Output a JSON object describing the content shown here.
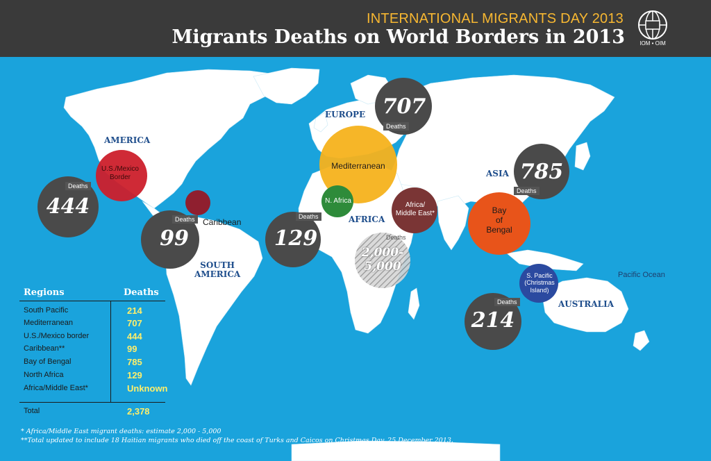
{
  "header": {
    "supertitle": "INTERNATIONAL MIGRANTS DAY 2013",
    "title": "Migrants Deaths on World Borders in 2013",
    "logo_text": "IOM • OIM"
  },
  "colors": {
    "ocean": "#1aa3dc",
    "land": "#ffffff",
    "header_bg": "#3a3a3a",
    "accent_yellow": "#f7b731",
    "us_mexico": "#cc1f2b",
    "caribbean": "#8f1f2f",
    "mediterranean": "#f5b21c",
    "north_africa": "#2e8b3a",
    "africa_middle_east": "#7a3535",
    "bay_of_bengal": "#e8541a",
    "south_pacific": "#2b4aa0",
    "bubble_dark": "#4a4a4a"
  },
  "map": {
    "region_labels": [
      {
        "key": "america",
        "text": "AMERICA"
      },
      {
        "key": "europe",
        "text": "EUROPE"
      },
      {
        "key": "africa",
        "text": "AFRICA"
      },
      {
        "key": "asia",
        "text": "ASIA"
      },
      {
        "key": "south_america",
        "text": "SOUTH\nAMERICA"
      },
      {
        "key": "australia",
        "text": "AUSTRALIA"
      }
    ],
    "ocean_labels": [
      {
        "key": "pacific",
        "text": "Pacific Ocean"
      }
    ],
    "zones": [
      {
        "key": "us_mexico",
        "label": "U.S./Mexico\nBorder",
        "color": "#cc1f2b"
      },
      {
        "key": "caribbean",
        "label": "",
        "outside_label": "Caribbean",
        "color": "#8f1f2f"
      },
      {
        "key": "mediterranean",
        "label": "Mediterranean",
        "color": "#f5b21c"
      },
      {
        "key": "north_africa",
        "label": "N. Africa",
        "color": "#2e8b3a"
      },
      {
        "key": "africa_middle_east",
        "label": "Africa/\nMiddle East*",
        "color": "#7a3535"
      },
      {
        "key": "bay_of_bengal",
        "label": "Bay\nof\nBengal",
        "color": "#e8541a"
      },
      {
        "key": "south_pacific",
        "label": "S. Pacific\n(Christmas\nIsland)",
        "color": "#2b4aa0"
      }
    ],
    "bubbles": [
      {
        "key": "us_mexico",
        "value": "444",
        "deaths_label": "Deaths"
      },
      {
        "key": "caribbean",
        "value": "99",
        "deaths_label": "Deaths"
      },
      {
        "key": "north_africa",
        "value": "129",
        "deaths_label": "Deaths"
      },
      {
        "key": "mediterranean",
        "value": "707",
        "deaths_label": "Deaths"
      },
      {
        "key": "bay_of_bengal",
        "value": "785",
        "deaths_label": "Deaths"
      },
      {
        "key": "south_pacific",
        "value": "214",
        "deaths_label": "Deaths"
      },
      {
        "key": "africa_middle_east",
        "value": "2,000-\n5,000",
        "deaths_label": "Deaths"
      }
    ]
  },
  "legend": {
    "col_region": "Regions",
    "col_deaths": "Deaths",
    "rows": [
      {
        "region": "South Pacific",
        "deaths": "214"
      },
      {
        "region": "Mediterranean",
        "deaths": "707"
      },
      {
        "region": "U.S./Mexico border",
        "deaths": "444"
      },
      {
        "region": "Caribbean**",
        "deaths": "99"
      },
      {
        "region": "Bay of Bengal",
        "deaths": "785"
      },
      {
        "region": "North Africa",
        "deaths": "129"
      },
      {
        "region": "Africa/Middle East*",
        "deaths": "Unknown"
      }
    ],
    "total_label": "Total",
    "total_value": "2,378"
  },
  "footnotes": [
    "* Africa/Middle East migrant deaths: estimate 2,000 - 5,000",
    "**Total updated to include 18 Haitian migrants who died off the coast of Turks and Caicos on Christmas Day, 25 December 2013."
  ]
}
